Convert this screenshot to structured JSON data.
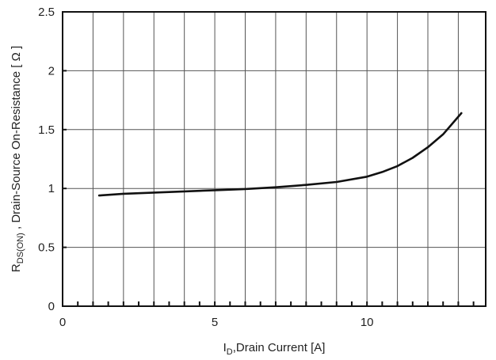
{
  "chart_data": {
    "type": "line",
    "xlabel": {
      "main": "I",
      "sub": "D",
      "rest": ",Drain Current [A]"
    },
    "ylabel": {
      "main": "R",
      "sub": "DS(ON)",
      "rest": " , Drain-Source On-Resistance [ Ω ]"
    },
    "xlim": [
      0,
      13.9
    ],
    "ylim": [
      0,
      2.5
    ],
    "x_ticks": [
      0,
      5,
      10
    ],
    "x_tick_labels": [
      "0",
      "5",
      "10"
    ],
    "y_ticks": [
      0,
      0.5,
      1,
      1.5,
      2,
      2.5
    ],
    "y_tick_labels": [
      "0",
      "0.5",
      "1",
      "1.5",
      "2",
      "2.5"
    ],
    "grid": true,
    "legend": "none",
    "series": [
      {
        "color": "#111111",
        "x": [
          1.2,
          2,
          3,
          4,
          5,
          6,
          7,
          8,
          9,
          10,
          10.5,
          11,
          11.5,
          12,
          12.5,
          13.1
        ],
        "y": [
          0.94,
          0.955,
          0.965,
          0.975,
          0.985,
          0.995,
          1.01,
          1.03,
          1.055,
          1.1,
          1.14,
          1.19,
          1.26,
          1.35,
          1.46,
          1.64
        ]
      }
    ]
  }
}
